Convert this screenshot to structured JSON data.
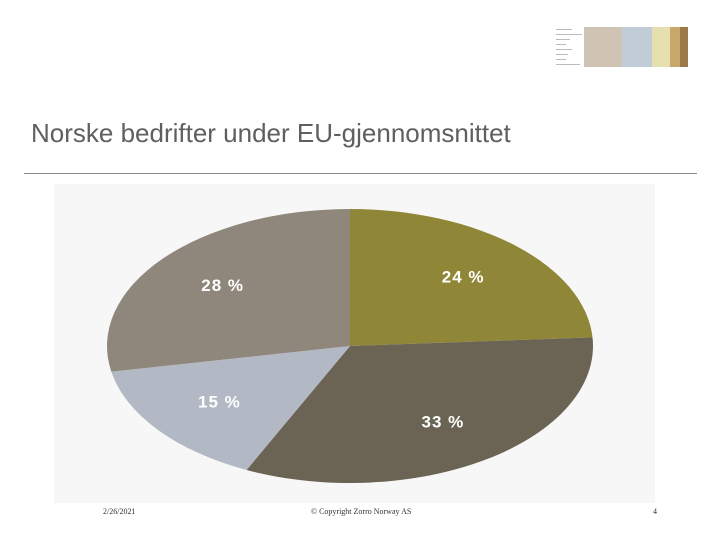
{
  "slide": {
    "title": "Norske bedrifter under EU-gjennomsnittet"
  },
  "footer": {
    "date": "2/26/2021",
    "copyright": "© Copyright Zorro Norway AS",
    "page": "4"
  },
  "colors": {
    "olive": "#8f8737",
    "dark_taupe": "#6b6454",
    "blue_gray": "#b3b9c4",
    "warm_gray": "#8f877b"
  },
  "chart_data": {
    "type": "pie",
    "title": "",
    "start": "12 o'clock",
    "direction": "clockwise",
    "slices": [
      {
        "label": "24 %",
        "value": 24,
        "color": "#8f8737"
      },
      {
        "label": "33 %",
        "value": 33,
        "color": "#6b6454"
      },
      {
        "label": "15 %",
        "value": 15,
        "color": "#b3b9c4"
      },
      {
        "label": "28 %",
        "value": 28,
        "color": "#8f877b"
      }
    ]
  }
}
